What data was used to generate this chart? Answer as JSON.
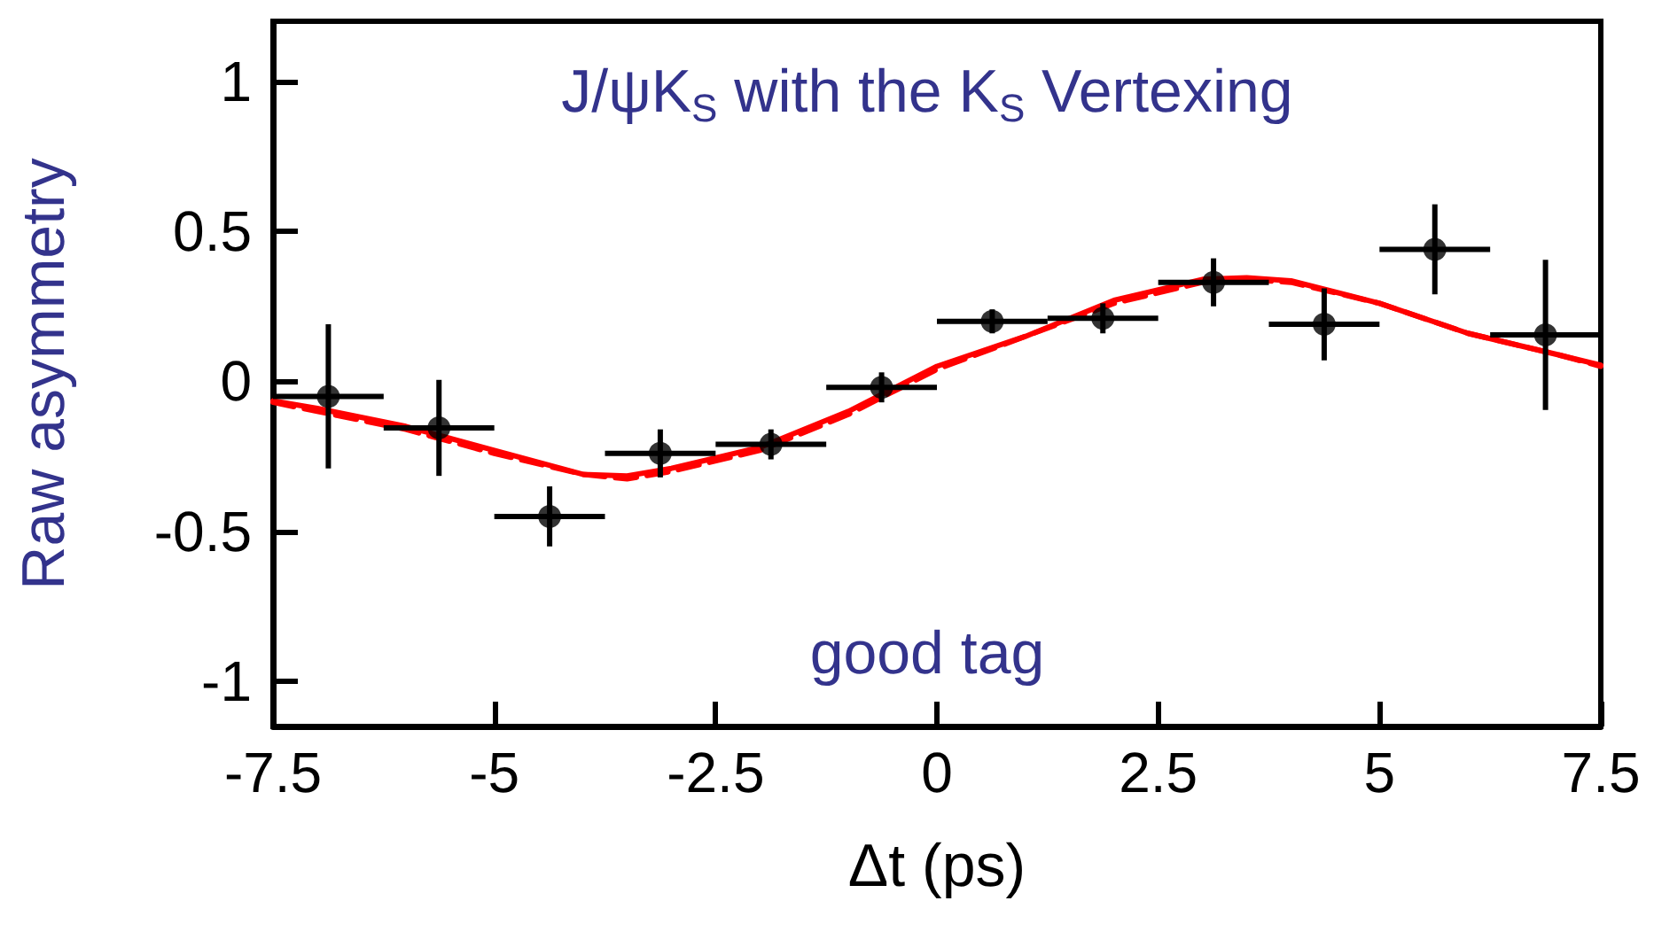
{
  "chart_data": {
    "type": "scatter",
    "xlabel": "Δt (ps)",
    "ylabel": "Raw asymmetry",
    "annotations": [
      "J/ψK$_{S}$ with the K$_{S}$ Vertexing",
      "good tag"
    ],
    "xlim": [
      -7.5,
      7.5
    ],
    "xticks": [
      -7.5,
      -5,
      -2.5,
      0,
      2.5,
      5,
      7.5
    ],
    "ylim": [
      -1.15,
      1.2
    ],
    "yticks": [
      -1,
      -0.5,
      0,
      0.5,
      1
    ],
    "marker": "circle",
    "series": [
      {
        "type": "scatter",
        "color": "#000000",
        "x": [
          -6.875,
          -5.625,
          -4.375,
          -3.125,
          -1.875,
          -0.625,
          0.625,
          1.875,
          3.125,
          4.375,
          5.625,
          6.875
        ],
        "values": [
          -0.05,
          -0.155,
          -0.45,
          -0.24,
          -0.21,
          -0.02,
          0.2,
          0.21,
          0.33,
          0.19,
          0.44,
          0.155
        ],
        "errors": [
          0.24,
          0.16,
          0.1,
          0.08,
          0.05,
          0.05,
          0.04,
          0.05,
          0.08,
          0.12,
          0.15,
          0.25
        ],
        "xerrors": [
          0.625,
          0.625,
          0.625,
          0.625,
          0.625,
          0.625,
          0.625,
          0.625,
          0.625,
          0.625,
          0.625,
          0.625
        ]
      },
      {
        "type": "line",
        "color": "#ff0000",
        "marker": "none",
        "line_style": "dashed",
        "x": [
          -7.5,
          -7,
          -6,
          -5,
          -4,
          -3.5,
          -3,
          -2,
          -1,
          0,
          1,
          2,
          3,
          3.5,
          4,
          5,
          6,
          7,
          7.5
        ],
        "values": [
          -0.07,
          -0.1,
          -0.16,
          -0.24,
          -0.31,
          -0.325,
          -0.3,
          -0.23,
          -0.11,
          0.04,
          0.15,
          0.26,
          0.33,
          0.34,
          0.33,
          0.26,
          0.16,
          0.09,
          0.05
        ]
      },
      {
        "type": "line",
        "color": "#ff0000",
        "marker": "none",
        "line_style": "solid",
        "x": [
          -7.5,
          -7,
          -6,
          -5,
          -4,
          -3.5,
          -3,
          -2,
          -1,
          0,
          1,
          2,
          3,
          3.5,
          4,
          5,
          6,
          7,
          7.5
        ],
        "values": [
          -0.065,
          -0.09,
          -0.15,
          -0.23,
          -0.31,
          -0.315,
          -0.29,
          -0.22,
          -0.1,
          0.05,
          0.15,
          0.27,
          0.34,
          0.345,
          0.335,
          0.26,
          0.16,
          0.09,
          0.054
        ]
      }
    ]
  }
}
